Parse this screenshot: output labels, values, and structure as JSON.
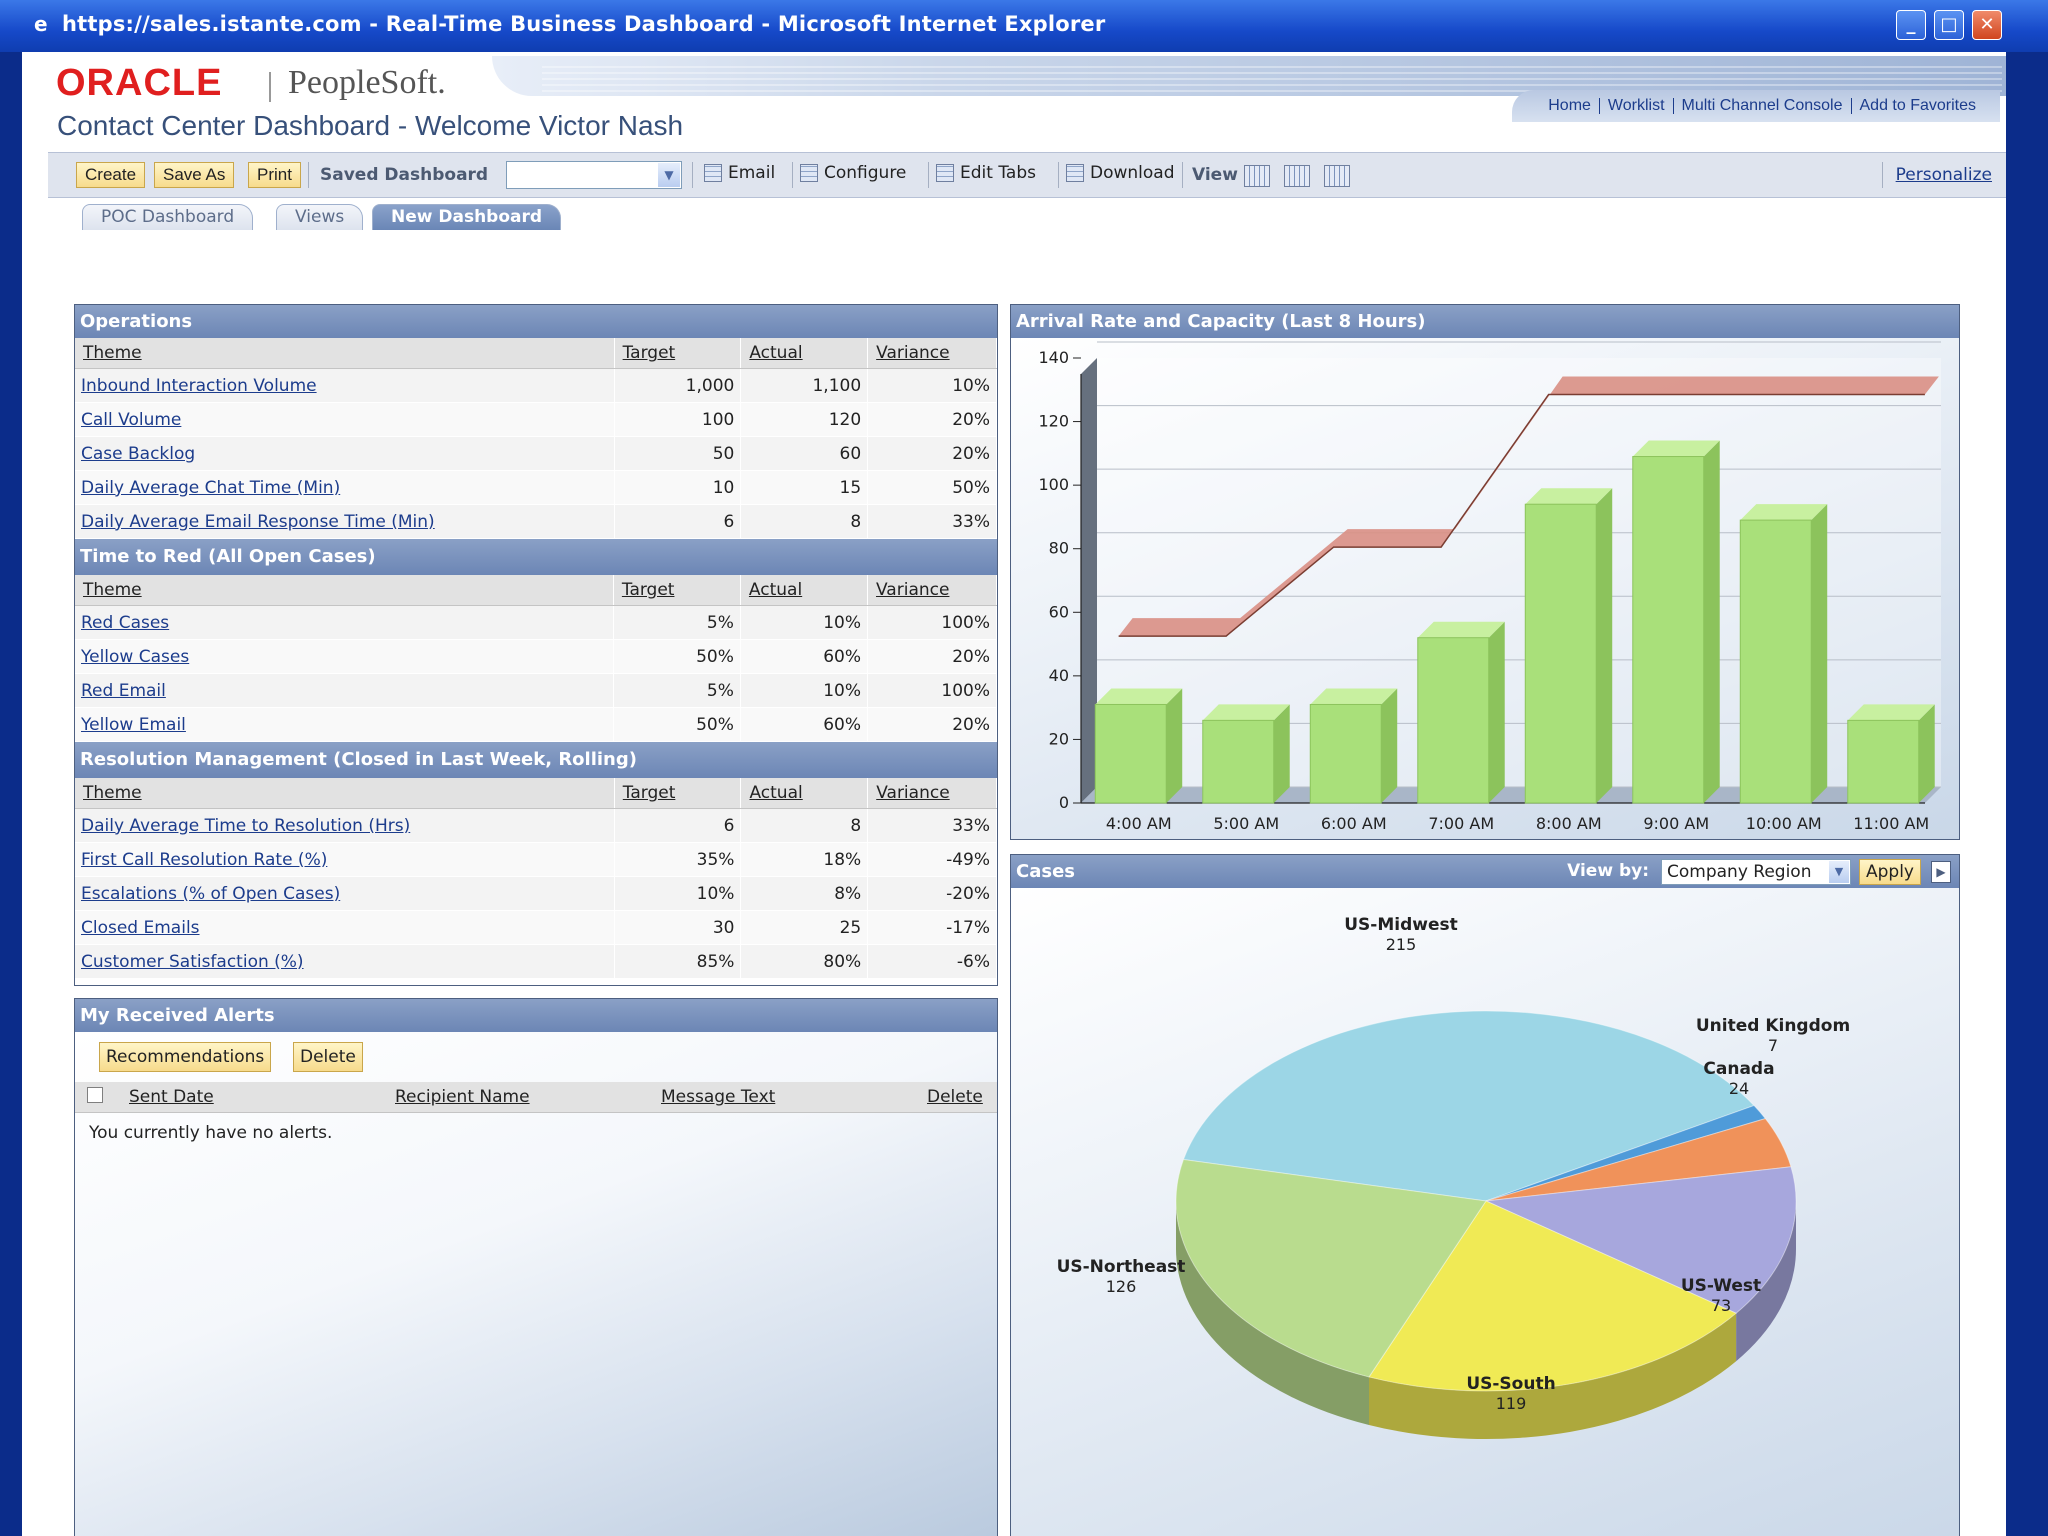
{
  "window": {
    "title": "https://sales.istante.com - Real-Time Business Dashboard - Microsoft Internet Explorer",
    "controls": {
      "minimize": "_",
      "maximize": "□",
      "close": "✕"
    }
  },
  "header": {
    "logo_oracle": "ORACLE",
    "logo_peoplesoft": "PeopleSoft.",
    "links": [
      "Home",
      "Worklist",
      "Multi Channel Console",
      "Add to Favorites"
    ],
    "page_title": "Contact Center Dashboard - Welcome Victor Nash"
  },
  "toolbar": {
    "create": "Create",
    "save_as": "Save As",
    "print": "Print",
    "saved_dashboard_label": "Saved Dashboard",
    "saved_dashboard_value": "",
    "email": "Email",
    "configure": "Configure",
    "edit_tabs": "Edit Tabs",
    "download": "Download",
    "view": "View",
    "personalize": "Personalize"
  },
  "tabs": [
    "POC Dashboard",
    "Views",
    "New Dashboard"
  ],
  "operations": {
    "title": "Operations",
    "columns": [
      "Theme",
      "Target",
      "Actual",
      "Variance"
    ],
    "sections": [
      {
        "rows": [
          [
            "Inbound Interaction Volume",
            "1,000",
            "1,100",
            "10%"
          ],
          [
            "Call Volume",
            "100",
            "120",
            "20%"
          ],
          [
            "Case Backlog",
            "50",
            "60",
            "20%"
          ],
          [
            "Daily Average Chat Time (Min)",
            "10",
            "15",
            "50%"
          ],
          [
            "Daily Average Email Response Time (Min)",
            "6",
            "8",
            "33%"
          ]
        ]
      },
      {
        "title": "Time to Red (All Open Cases)",
        "rows": [
          [
            "Red Cases",
            "5%",
            "10%",
            "100%"
          ],
          [
            "Yellow Cases",
            "50%",
            "60%",
            "20%"
          ],
          [
            "Red Email",
            "5%",
            "10%",
            "100%"
          ],
          [
            "Yellow Email",
            "50%",
            "60%",
            "20%"
          ]
        ]
      },
      {
        "title": "Resolution Management (Closed in Last Week, Rolling)",
        "rows": [
          [
            "Daily Average Time to Resolution (Hrs)",
            "6",
            "8",
            "33%"
          ],
          [
            "First Call Resolution Rate (%)",
            "35%",
            "18%",
            "-49%"
          ],
          [
            "Escalations (% of Open Cases)",
            "10%",
            "8%",
            "-20%"
          ],
          [
            "Closed Emails",
            "30",
            "25",
            "-17%"
          ],
          [
            "Customer Satisfaction (%)",
            "85%",
            "80%",
            "-6%"
          ]
        ]
      }
    ]
  },
  "alerts": {
    "title": "My Received Alerts",
    "recommendations": "Recommendations",
    "delete_button": "Delete",
    "columns": [
      "Sent Date",
      "Recipient Name",
      "Message Text",
      "Delete"
    ],
    "empty_message": "You currently have no alerts."
  },
  "arrival_chart": {
    "title": "Arrival Rate and Capacity (Last 8 Hours)"
  },
  "cases_panel": {
    "title": "Cases",
    "view_by_label": "View by:",
    "view_by_value": "Company Region",
    "apply": "Apply"
  },
  "chart_data": [
    {
      "type": "bar",
      "title": "Arrival Rate and Capacity (Last 8 Hours)",
      "categories": [
        "4:00 AM",
        "5:00 AM",
        "6:00 AM",
        "7:00 AM",
        "8:00 AM",
        "9:00 AM",
        "10:00 AM",
        "11:00 AM"
      ],
      "series": [
        {
          "type": "bar",
          "values": [
            31,
            26,
            31,
            52,
            94,
            109,
            89,
            26
          ],
          "color": "#a9e07a"
        },
        {
          "type": "line",
          "values": [
            50,
            50,
            78,
            78,
            126,
            126,
            126,
            126
          ],
          "color": "#d98f84"
        }
      ],
      "yticks": [
        0,
        20,
        40,
        60,
        80,
        100,
        120,
        140
      ],
      "ylim": [
        0,
        140
      ],
      "grid": true
    },
    {
      "type": "pie",
      "title": "Cases",
      "slices": [
        {
          "label": "US-Midwest",
          "value": 215,
          "color": "#9cd6e6"
        },
        {
          "label": "United Kingdom",
          "value": 7,
          "color": "#4f9bd9"
        },
        {
          "label": "Canada",
          "value": 24,
          "color": "#f0925a"
        },
        {
          "label": "US-West",
          "value": 73,
          "color": "#a7a7dd"
        },
        {
          "label": "US-South",
          "value": 119,
          "color": "#f0ea55"
        },
        {
          "label": "US-Northeast",
          "value": 126,
          "color": "#b9dc8e"
        }
      ]
    }
  ]
}
